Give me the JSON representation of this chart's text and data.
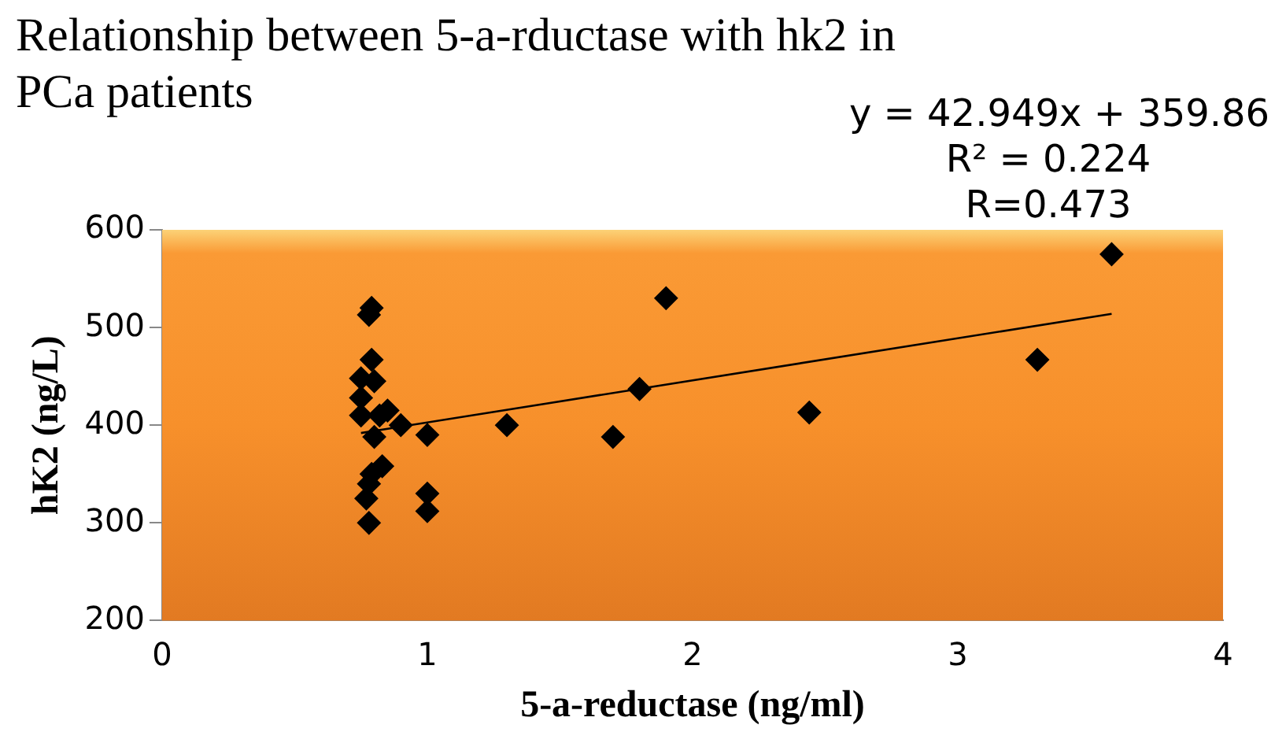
{
  "chart_data": {
    "type": "scatter",
    "title": "Relationship between 5-a-rductase with hk2 in PCa patients",
    "xlabel": "5-a-reductase (ng/ml)",
    "ylabel": "hK2 (ng/L)",
    "xlim": [
      0,
      4
    ],
    "xticks": [
      0,
      1,
      2,
      3,
      4
    ],
    "ylim": [
      200,
      600
    ],
    "yticks": [
      200,
      300,
      400,
      500,
      600
    ],
    "grid": false,
    "legend": false,
    "marker": "diamond",
    "annotations": [
      "y = 42.949x + 359.86",
      "R² = 0.224",
      "R=0.473"
    ],
    "series": [
      {
        "color": "#000000",
        "x": [
          0.78,
          0.79,
          0.79,
          0.75,
          0.8,
          0.75,
          0.75,
          0.8,
          0.82,
          0.85,
          0.9,
          0.83,
          0.79,
          0.78,
          0.77,
          0.78,
          1.0,
          1.0,
          1.0,
          1.3,
          1.7,
          1.8,
          1.9,
          2.44,
          3.3,
          3.58
        ],
        "values": [
          513,
          520,
          467,
          448,
          445,
          428,
          410,
          388,
          410,
          415,
          400,
          358,
          350,
          340,
          325,
          300,
          390,
          330,
          312,
          400,
          388,
          437,
          530,
          413,
          467,
          575
        ]
      },
      {
        "type": "line",
        "color": "#000000",
        "marker": "none",
        "x": [
          0.75,
          3.58
        ],
        "values": [
          392,
          514
        ]
      }
    ]
  }
}
